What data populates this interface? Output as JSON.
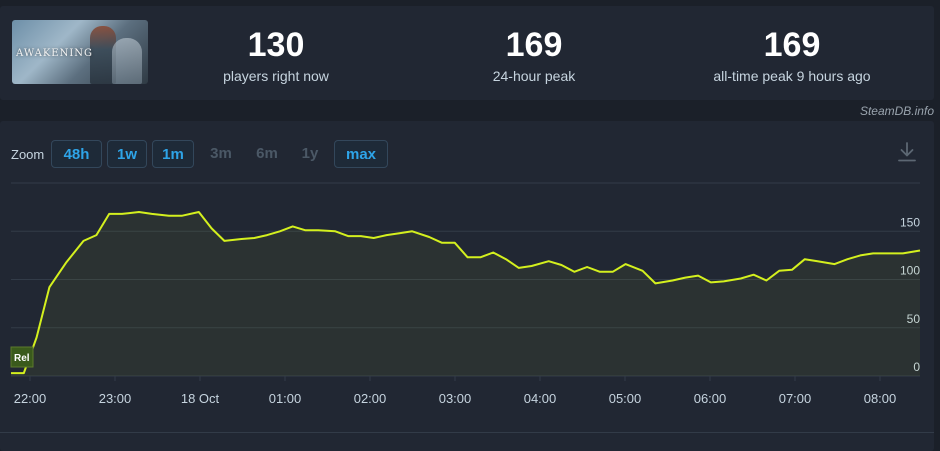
{
  "game": {
    "logo_text": "AWAKENING"
  },
  "stats": [
    {
      "value": "130",
      "label": "players right now"
    },
    {
      "value": "169",
      "label": "24-hour peak"
    },
    {
      "value": "169",
      "label": "all-time peak 9 hours ago"
    }
  ],
  "credit": "SteamDB.info",
  "zoom": {
    "label": "Zoom",
    "options": [
      {
        "label": "48h",
        "enabled": true
      },
      {
        "label": "1w",
        "enabled": true
      },
      {
        "label": "1m",
        "enabled": true
      },
      {
        "label": "3m",
        "enabled": false
      },
      {
        "label": "6m",
        "enabled": false
      },
      {
        "label": "1y",
        "enabled": false
      },
      {
        "label": "max",
        "enabled": true
      }
    ]
  },
  "icons": {
    "download": "download-icon"
  },
  "colors": {
    "line": "#d4f01e",
    "accent": "#2ea4e8",
    "background": "#1b2029",
    "panel": "#212733"
  },
  "chart_data": {
    "type": "line",
    "series": [
      {
        "values": [
          [
            0.0,
            3
          ],
          [
            0.15,
            3
          ],
          [
            0.3,
            40
          ],
          [
            0.45,
            92
          ],
          [
            0.65,
            118
          ],
          [
            0.85,
            140
          ],
          [
            1.0,
            146
          ],
          [
            1.15,
            168
          ],
          [
            1.3,
            168
          ],
          [
            1.5,
            170
          ],
          [
            1.65,
            168
          ],
          [
            1.85,
            166
          ],
          [
            2.0,
            166
          ],
          [
            2.2,
            170
          ],
          [
            2.35,
            153
          ],
          [
            2.5,
            140
          ],
          [
            2.7,
            142
          ],
          [
            2.85,
            143
          ],
          [
            3.0,
            146
          ],
          [
            3.15,
            150
          ],
          [
            3.3,
            155
          ],
          [
            3.45,
            151
          ],
          [
            3.6,
            151
          ],
          [
            3.8,
            150
          ],
          [
            3.95,
            145
          ],
          [
            4.1,
            145
          ],
          [
            4.25,
            143
          ],
          [
            4.4,
            146
          ],
          [
            4.55,
            148
          ],
          [
            4.7,
            150
          ],
          [
            4.9,
            144
          ],
          [
            5.05,
            138
          ],
          [
            5.2,
            138
          ],
          [
            5.35,
            123
          ],
          [
            5.5,
            123
          ],
          [
            5.65,
            128
          ],
          [
            5.8,
            121
          ],
          [
            5.95,
            112
          ],
          [
            6.1,
            114
          ],
          [
            6.3,
            119
          ],
          [
            6.45,
            115
          ],
          [
            6.6,
            108
          ],
          [
            6.75,
            113
          ],
          [
            6.9,
            108
          ],
          [
            7.05,
            108
          ],
          [
            7.2,
            116
          ],
          [
            7.4,
            109
          ],
          [
            7.55,
            96
          ],
          [
            7.75,
            99
          ],
          [
            7.9,
            102
          ],
          [
            8.05,
            104
          ],
          [
            8.2,
            97
          ],
          [
            8.35,
            98
          ],
          [
            8.55,
            101
          ],
          [
            8.7,
            105
          ],
          [
            8.85,
            99
          ],
          [
            9.0,
            109
          ],
          [
            9.15,
            110
          ],
          [
            9.3,
            121
          ],
          [
            9.45,
            119
          ],
          [
            9.65,
            116
          ],
          [
            9.8,
            121
          ],
          [
            9.95,
            125
          ],
          [
            10.1,
            127
          ],
          [
            10.3,
            127
          ],
          [
            10.45,
            127
          ],
          [
            10.65,
            130
          ]
        ]
      }
    ],
    "x_ticks": [
      "22:00",
      "23:00",
      "18 Oct",
      "01:00",
      "02:00",
      "03:00",
      "04:00",
      "05:00",
      "06:00",
      "07:00",
      "08:00"
    ],
    "y_ticks": [
      "150",
      "100",
      "50",
      "0"
    ],
    "y_tick_values": [
      150,
      100,
      50,
      0
    ],
    "ylim": [
      0,
      200
    ],
    "xlim": [
      0,
      10.65
    ],
    "flag_label": "Rel",
    "grid": true,
    "area_fill": true
  }
}
